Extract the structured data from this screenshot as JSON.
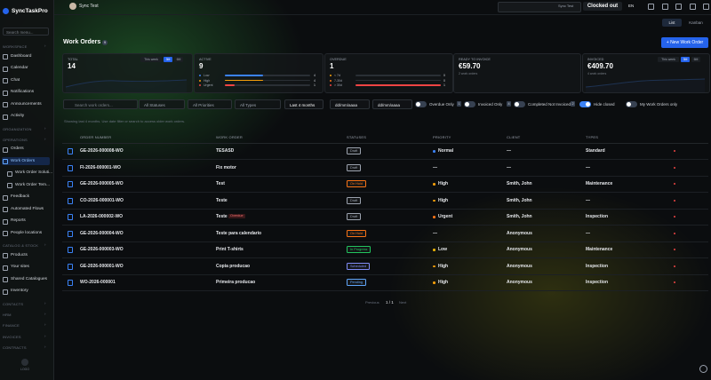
{
  "app": {
    "name": "SyncTaskPro"
  },
  "sidebar": {
    "search": "Search menu...",
    "sections": [
      {
        "title": "WORKSPACE",
        "items": [
          {
            "label": "Dashboard"
          },
          {
            "label": "Calendar"
          },
          {
            "label": "Chat"
          },
          {
            "label": "Notifications"
          },
          {
            "label": "Announcements"
          },
          {
            "label": "Activity"
          }
        ]
      },
      {
        "title": "ORGANIZATION",
        "items": []
      },
      {
        "title": "OPERATIONS",
        "items": [
          {
            "label": "Orders"
          },
          {
            "label": "Work Orders",
            "active": true
          },
          {
            "label": "Work Order Soluti...",
            "sub": true
          },
          {
            "label": "Work Order Tem...",
            "sub": true
          },
          {
            "label": "Feedback"
          },
          {
            "label": "Automated Flows"
          },
          {
            "label": "Reports"
          },
          {
            "label": "People locations"
          }
        ]
      },
      {
        "title": "CATALOG & STOCK",
        "items": [
          {
            "label": "Products"
          },
          {
            "label": "Your sites"
          },
          {
            "label": "Shared Catalogues"
          },
          {
            "label": "Inventory"
          }
        ]
      },
      {
        "title": "CONTACTS",
        "items": []
      },
      {
        "title": "HRM",
        "items": []
      },
      {
        "title": "FINANCE",
        "items": []
      },
      {
        "title": "INVOICES",
        "items": []
      },
      {
        "title": "CONTRACTS",
        "items": []
      }
    ],
    "footer": "LOGO"
  },
  "topbar": {
    "org": "Sync Test",
    "org_pill": "Sync Test",
    "clock": "Clocked out",
    "lang": "EN"
  },
  "view": {
    "list": "List",
    "kanban": "Kanban"
  },
  "header": {
    "title": "Work Orders",
    "count": 9,
    "new_button": "+ New Work Order"
  },
  "stats": {
    "total": {
      "label": "TOTAL",
      "value": 14,
      "ranges": [
        "This week",
        "3M",
        "6M"
      ],
      "selected_range": 1
    },
    "active": {
      "label": "ACTIVE",
      "value": 9,
      "breakdown": [
        {
          "name": "Low",
          "value": 4,
          "color": "#3b82f6"
        },
        {
          "name": "High",
          "value": 4,
          "color": "#f59e0b"
        },
        {
          "name": "Urgent",
          "value": 1,
          "color": "#ef4444"
        }
      ]
    },
    "overdue": {
      "label": "OVERDUE",
      "value": 1,
      "breakdown": [
        {
          "name": "< 7d",
          "value": 0,
          "color": "#f59e0b"
        },
        {
          "name": "7-30d",
          "value": 0,
          "color": "#f97316"
        },
        {
          "name": "> 30d",
          "value": 1,
          "color": "#ef4444"
        }
      ]
    },
    "ready": {
      "label": "READY TO INVOICE",
      "value": "€59.70",
      "note": "2 work orders"
    },
    "invoiced": {
      "label": "INVOICED",
      "value": "€409.70",
      "note": "4 work orders",
      "ranges": [
        "This week",
        "3M",
        "6M"
      ],
      "selected_range": 1
    }
  },
  "filters": {
    "search": "Search work orders...",
    "selects": [
      "All Statuses",
      "All Priorities",
      "All Types",
      "Last 4 months"
    ],
    "dates": [
      "dd/mm/aaaa",
      "dd/mm/aaaa"
    ],
    "toggles": [
      {
        "label": "Overdue Only",
        "count": 1,
        "on": false
      },
      {
        "label": "Invoiced Only",
        "count": 4,
        "on": false
      },
      {
        "label": "Completed Not Invoiced",
        "count": 2,
        "on": false
      },
      {
        "label": "Hide closed",
        "on": true
      },
      {
        "label": "My Work Orders only",
        "on": false
      }
    ],
    "info": "Showing last 4 months. Use date filter or search to access older work orders."
  },
  "table": {
    "columns": [
      "ORDER NUMBER",
      "WORK ORDER",
      "STATUSES",
      "PRIORITY",
      "CLIENT",
      "TYPES"
    ],
    "status_colors": {
      "Draft": "#9ca3af",
      "On Hold": "#f97316",
      "In Progress": "#22c55e",
      "Scheduled": "#818cf8",
      "Pending": "#60a5fa"
    },
    "priority_colors": {
      "Normal": "#3b82f6",
      "High": "#f59e0b",
      "Urgent": "#f97316",
      "Low": "#eab308"
    },
    "rows": [
      {
        "order": "GE-2026-000008-WO",
        "title": "TESASD",
        "status": "Draft",
        "priority": "Normal",
        "client": "—",
        "type": "Standard"
      },
      {
        "order": "FI-2026-000001-WO",
        "title": "Fix motor",
        "status": "Draft",
        "priority": "—",
        "client": "—",
        "type": "—"
      },
      {
        "order": "GE-2026-000005-WO",
        "title": "Test",
        "status": "On Hold",
        "priority": "High",
        "client": "Smith, John",
        "type": "Maintenance"
      },
      {
        "order": "CO-2026-000001-WO",
        "title": "Teste",
        "status": "Draft",
        "priority": "High",
        "client": "Smith, John",
        "type": "—"
      },
      {
        "order": "LA-2026-000002-WO",
        "title": "Teste",
        "tag": "Overdue",
        "status": "Draft",
        "priority": "Urgent",
        "client": "Smith, John",
        "type": "Inspection"
      },
      {
        "order": "GE-2026-000004-WO",
        "title": "Teste para calendario",
        "status": "On Hold",
        "priority": "—",
        "client": "Anonymous",
        "type": "—"
      },
      {
        "order": "GE-2026-000003-WO",
        "title": "Print T-shirts",
        "status": "In Progress",
        "priority": "Low",
        "client": "Anonymous",
        "type": "Maintenance"
      },
      {
        "order": "GE-2026-000001-WO",
        "title": "Copia producao",
        "status": "Scheduled",
        "priority": "High",
        "client": "Anonymous",
        "type": "Inspection"
      },
      {
        "order": "WO-2026-000001",
        "title": "Primeira producao",
        "status": "Pending",
        "priority": "High",
        "client": "Anonymous",
        "type": "Inspection"
      }
    ]
  },
  "pagination": {
    "prev": "Previous",
    "page": "1 / 1",
    "next": "Next"
  }
}
